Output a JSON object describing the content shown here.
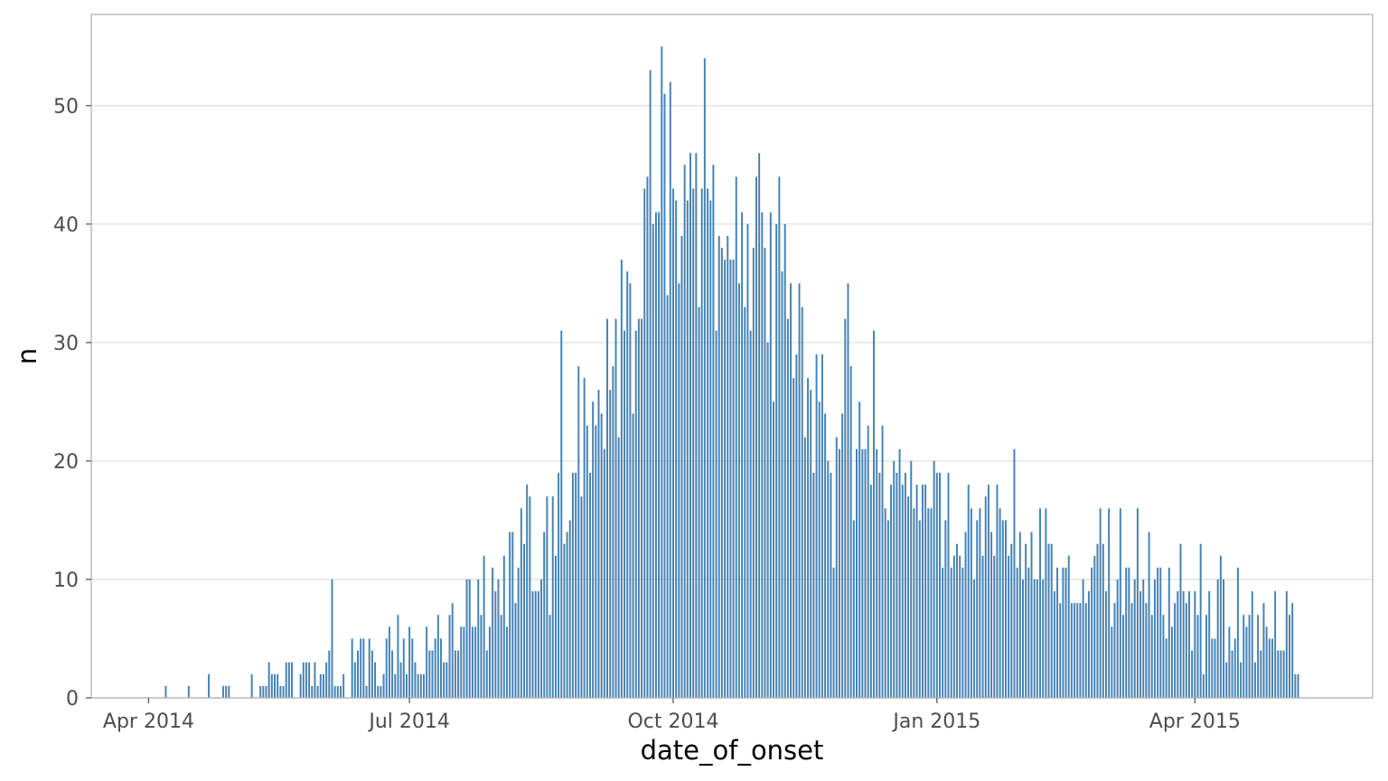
{
  "chart_data": {
    "type": "bar",
    "xlabel": "date_of_onset",
    "ylabel": "n",
    "x_axis_type": "date",
    "x_ticks": [
      {
        "date": "2014-04-01",
        "label": "Apr 2014"
      },
      {
        "date": "2014-07-01",
        "label": "Jul 2014"
      },
      {
        "date": "2014-10-01",
        "label": "Oct 2014"
      },
      {
        "date": "2015-01-01",
        "label": "Jan 2015"
      },
      {
        "date": "2015-04-01",
        "label": "Apr 2015"
      }
    ],
    "y_ticks": [
      0,
      10,
      20,
      30,
      40,
      50
    ],
    "xlim": [
      "2014-03-12",
      "2015-06-02"
    ],
    "ylim": [
      0,
      57.7
    ],
    "grid": true,
    "bar_color": "#4682b4",
    "start_date": "2014-04-07",
    "values": [
      1,
      0,
      0,
      0,
      0,
      0,
      0,
      0,
      1,
      0,
      0,
      0,
      0,
      0,
      0,
      2,
      0,
      0,
      0,
      0,
      1,
      1,
      1,
      0,
      0,
      0,
      0,
      0,
      0,
      0,
      2,
      0,
      0,
      1,
      1,
      1,
      3,
      2,
      2,
      2,
      1,
      1,
      3,
      3,
      3,
      0,
      0,
      2,
      3,
      3,
      3,
      1,
      3,
      1,
      2,
      2,
      3,
      4,
      10,
      1,
      1,
      1,
      2,
      0,
      0,
      5,
      3,
      4,
      5,
      5,
      1,
      5,
      4,
      3,
      1,
      1,
      2,
      5,
      6,
      4,
      2,
      7,
      3,
      5,
      2,
      6,
      5,
      3,
      2,
      2,
      2,
      6,
      4,
      4,
      5,
      7,
      5,
      3,
      3,
      7,
      8,
      4,
      4,
      6,
      6,
      10,
      10,
      6,
      6,
      10,
      7,
      12,
      4,
      6,
      11,
      9,
      10,
      7,
      12,
      6,
      14,
      14,
      8,
      11,
      16,
      13,
      18,
      17,
      9,
      9,
      9,
      10,
      14,
      17,
      7,
      17,
      12,
      19,
      31,
      13,
      14,
      15,
      19,
      19,
      28,
      17,
      27,
      23,
      19,
      25,
      23,
      26,
      24,
      21,
      32,
      26,
      28,
      32,
      22,
      37,
      31,
      36,
      35,
      24,
      31,
      32,
      32,
      43,
      44,
      53,
      40,
      41,
      41,
      55,
      51,
      34,
      52,
      43,
      42,
      35,
      39,
      45,
      42,
      46,
      43,
      46,
      33,
      43,
      54,
      43,
      42,
      45,
      31,
      39,
      38,
      37,
      39,
      37,
      37,
      44,
      35,
      41,
      33,
      40,
      31,
      38,
      44,
      46,
      41,
      38,
      30,
      41,
      25,
      40,
      44,
      36,
      40,
      32,
      35,
      27,
      29,
      35,
      33,
      22,
      27,
      26,
      19,
      29,
      25,
      29,
      24,
      20,
      19,
      11,
      22,
      21,
      24,
      32,
      35,
      28,
      15,
      21,
      25,
      21,
      21,
      23,
      18,
      31,
      21,
      19,
      23,
      16,
      15,
      18,
      20,
      19,
      21,
      18,
      19,
      17,
      20,
      16,
      18,
      15,
      18,
      18,
      16,
      16,
      20,
      19,
      19,
      11,
      15,
      19,
      11,
      12,
      13,
      12,
      11,
      14,
      18,
      16,
      10,
      15,
      16,
      12,
      17,
      18,
      14,
      12,
      18,
      16,
      15,
      15,
      12,
      13,
      21,
      11,
      14,
      10,
      13,
      11,
      14,
      10,
      10,
      16,
      10,
      16,
      13,
      13,
      9,
      11,
      8,
      11,
      11,
      12,
      8,
      8,
      8,
      8,
      10,
      8,
      9,
      11,
      12,
      13,
      16,
      13,
      9,
      16,
      6,
      8,
      10,
      16,
      7,
      11,
      11,
      8,
      10,
      16,
      9,
      10,
      8,
      14,
      7,
      10,
      11,
      11,
      7,
      5,
      11,
      6,
      8,
      9,
      13,
      9,
      8,
      9,
      4,
      9,
      7,
      13,
      2,
      7,
      9,
      5,
      5,
      10,
      12,
      10,
      3,
      6,
      4,
      5,
      11,
      3,
      7,
      6,
      7,
      9,
      3,
      7,
      4,
      8,
      6,
      5,
      5,
      9,
      4,
      4,
      4,
      9,
      7,
      8,
      2,
      2
    ]
  }
}
